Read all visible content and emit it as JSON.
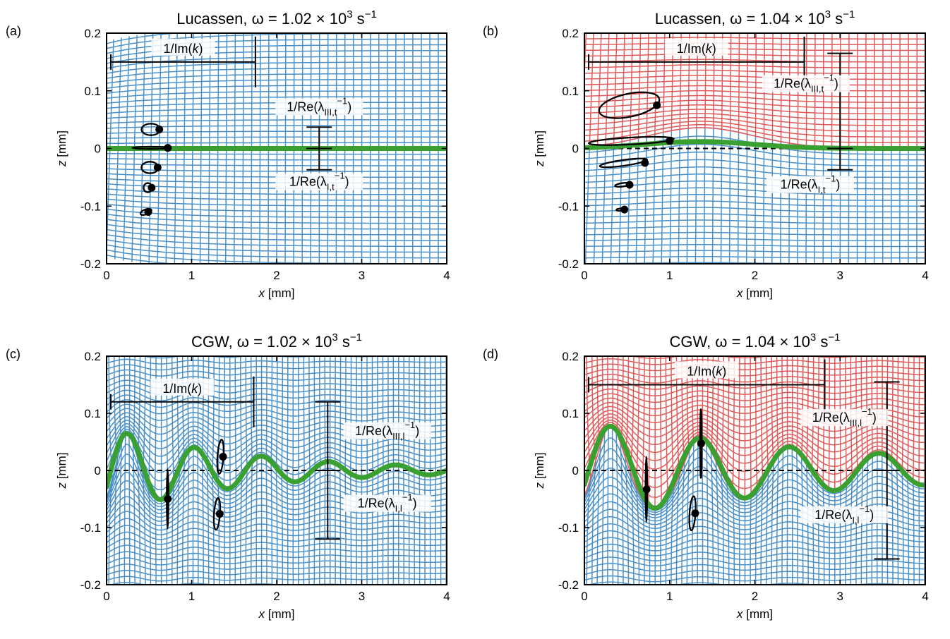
{
  "figure": {
    "x_label_prefix": "x",
    "y_label_prefix": "z",
    "unit": "[mm]",
    "x_ticks": [
      "0",
      "1",
      "2",
      "3",
      "4"
    ],
    "y_ticks": [
      "0.2",
      "0.1",
      "0",
      "-0.1",
      "-0.2"
    ],
    "im_label": "1/Im(k)",
    "colors": {
      "lower_grid": "#4a90c8",
      "upper_grid": "#e05a5a",
      "interface": "#3aa032",
      "ink": "#000000"
    }
  },
  "chart_data": [
    {
      "type": "line",
      "panel_label": "(a)",
      "title_model": "Lucassen",
      "title_omega": "1.02",
      "xlim": [
        0,
        4
      ],
      "ylim": [
        -0.2,
        0.2
      ],
      "upper_grid": "lower_grid",
      "interface": {
        "mode": "flat",
        "amplitude": 0.0,
        "wavelength": 1,
        "decay": 0
      },
      "im_bar": {
        "x1": 0.05,
        "x2": 1.75,
        "y": 0.15
      },
      "upper_bar": {
        "x": 2.5,
        "y1": 0.0,
        "y2": 0.037,
        "label_base": "1/Re(λ",
        "label_sub": "III,t",
        "label_sup": "−1",
        "label_x": 2.5,
        "label_y": 0.065
      },
      "lower_bar": {
        "x": 2.5,
        "y1": -0.037,
        "y2": 0.0,
        "label_base": "1/Re(λ",
        "label_sub": "I,t",
        "label_sup": "−1",
        "label_x": 2.5,
        "label_y": -0.065
      },
      "particles": [
        {
          "x": 0.62,
          "y": 0.033,
          "rx": 0.11,
          "ry": 0.01,
          "angle": 0
        },
        {
          "x": 0.72,
          "y": 0.001,
          "rx": 0.22,
          "ry": 0.002,
          "angle": 0
        },
        {
          "x": 0.6,
          "y": -0.033,
          "rx": 0.1,
          "ry": 0.01,
          "angle": 0
        },
        {
          "x": 0.53,
          "y": -0.068,
          "rx": 0.05,
          "ry": 0.008,
          "angle": 0
        },
        {
          "x": 0.49,
          "y": -0.11,
          "rx": 0.03,
          "ry": 0.01,
          "angle": -70
        }
      ]
    },
    {
      "type": "line",
      "panel_label": "(b)",
      "title_model": "Lucassen",
      "title_omega": "1.04",
      "xlim": [
        0,
        4
      ],
      "ylim": [
        -0.2,
        0.2
      ],
      "upper_grid": "upper_grid",
      "interface": {
        "mode": "bump",
        "amplitude": 0.012,
        "wavelength": 1,
        "decay": 0
      },
      "im_bar": {
        "x1": 0.05,
        "x2": 2.58,
        "y": 0.15
      },
      "upper_bar": {
        "x": 3.0,
        "y1": 0.0,
        "y2": 0.165,
        "label_base": "1/Re(λ",
        "label_sub": "III,t",
        "label_sup": "−1",
        "label_x": 2.6,
        "label_y": 0.105
      },
      "lower_bar": {
        "x": 3.0,
        "y1": -0.037,
        "y2": 0.0,
        "label_base": "1/Re(λ",
        "label_sub": "I,t",
        "label_sup": "−1",
        "label_x": 2.65,
        "label_y": -0.07
      },
      "particles": [
        {
          "x": 0.85,
          "y": 0.075,
          "rx": 0.36,
          "ry": 0.02,
          "angle": 12
        },
        {
          "x": 1.0,
          "y": 0.013,
          "rx": 0.5,
          "ry": 0.006,
          "angle": 3
        },
        {
          "x": 0.71,
          "y": -0.025,
          "rx": 0.28,
          "ry": 0.005,
          "angle": 8
        },
        {
          "x": 0.53,
          "y": -0.063,
          "rx": 0.09,
          "ry": 0.003,
          "angle": 8
        },
        {
          "x": 0.47,
          "y": -0.106,
          "rx": 0.05,
          "ry": 0.002,
          "angle": 5
        }
      ]
    },
    {
      "type": "line",
      "panel_label": "(c)",
      "title_model": "CGW",
      "title_omega": "1.02",
      "xlim": [
        0,
        4
      ],
      "ylim": [
        -0.2,
        0.2
      ],
      "upper_grid": "lower_grid",
      "interface": {
        "mode": "wave",
        "amplitude": 0.075,
        "wavelength": 0.79,
        "decay": 0.6
      },
      "im_bar": {
        "x1": 0.05,
        "x2": 1.73,
        "y": 0.12
      },
      "upper_bar": {
        "x": 2.6,
        "y1": 0.0,
        "y2": 0.12,
        "label_base": "1/Re(λ",
        "label_sub": "III,l",
        "label_sup": "−1",
        "label_x": 3.3,
        "label_y": 0.062
      },
      "lower_bar": {
        "x": 2.6,
        "y1": -0.12,
        "y2": 0.0,
        "label_base": "1/Re(λ",
        "label_sub": "I,l",
        "label_sup": "−1",
        "label_x": 3.3,
        "label_y": -0.065
      },
      "particles": [
        {
          "x": 0.72,
          "y": -0.05,
          "rx": 0.003,
          "ry": 0.052,
          "angle": 0
        },
        {
          "x": 1.37,
          "y": 0.024,
          "rx": 0.035,
          "ry": 0.03,
          "angle": -4
        },
        {
          "x": 1.33,
          "y": -0.076,
          "rx": 0.035,
          "ry": 0.028,
          "angle": -4
        }
      ]
    },
    {
      "type": "line",
      "panel_label": "(d)",
      "title_model": "CGW",
      "title_omega": "1.04",
      "xlim": [
        0,
        4
      ],
      "ylim": [
        -0.2,
        0.2
      ],
      "upper_grid": "upper_grid",
      "interface": {
        "mode": "wave",
        "amplitude": 0.085,
        "wavelength": 1.05,
        "decay": 0.3
      },
      "im_bar": {
        "x1": 0.05,
        "x2": 2.82,
        "y": 0.15
      },
      "upper_bar": {
        "x": 3.55,
        "y1": 0.0,
        "y2": 0.155,
        "label_base": "1/Re(λ",
        "label_sub": "III,l",
        "label_sup": "−1",
        "label_x": 3.05,
        "label_y": 0.085
      },
      "lower_bar": {
        "x": 3.55,
        "y1": -0.155,
        "y2": 0.0,
        "label_base": "1/Re(λ",
        "label_sub": "I,l",
        "label_sup": "−1",
        "label_x": 3.05,
        "label_y": -0.085
      },
      "particles": [
        {
          "x": 0.73,
          "y": -0.033,
          "rx": 0.003,
          "ry": 0.057,
          "angle": 0
        },
        {
          "x": 1.37,
          "y": 0.047,
          "rx": 0.003,
          "ry": 0.06,
          "angle": 0
        },
        {
          "x": 1.3,
          "y": -0.075,
          "rx": 0.035,
          "ry": 0.03,
          "angle": -4
        }
      ]
    }
  ]
}
